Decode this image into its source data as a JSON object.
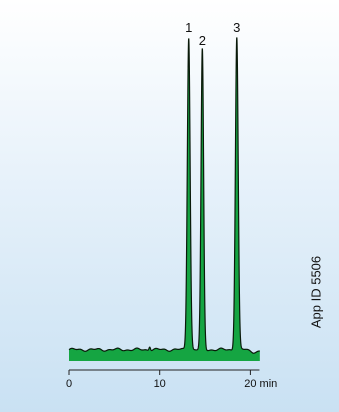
{
  "chart_data": {
    "type": "line",
    "xlabel": "",
    "ylabel": "",
    "x_unit": "min",
    "xlim": [
      0,
      21.5
    ],
    "ylim": [
      0,
      100
    ],
    "x_ticks": [
      0,
      10,
      20
    ],
    "x_tick_labels": [
      "0",
      "10",
      "20 min"
    ],
    "fill_color": "#15a542",
    "line_color": "#0a1a0a",
    "baseline_level": 3.5,
    "peaks": [
      {
        "label": "1",
        "retention_time": 13.2,
        "height": 100,
        "width": 0.22
      },
      {
        "label": "2",
        "retention_time": 14.7,
        "height": 96,
        "width": 0.2
      },
      {
        "label": "3",
        "retention_time": 18.5,
        "height": 100,
        "width": 0.22
      }
    ],
    "annotation": "App ID 5506"
  }
}
